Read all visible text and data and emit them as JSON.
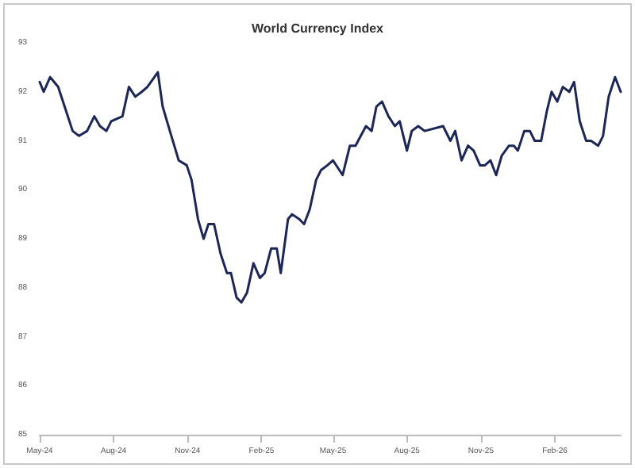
{
  "chart_data": {
    "type": "line",
    "title": "World Currency Index",
    "x": [
      "2024-05-01",
      "2024-05-06",
      "2024-05-14",
      "2024-05-24",
      "2024-06-01",
      "2024-06-11",
      "2024-06-19",
      "2024-06-29",
      "2024-07-08",
      "2024-07-15",
      "2024-07-23",
      "2024-07-29",
      "2024-08-12",
      "2024-08-20",
      "2024-08-28",
      "2024-09-05",
      "2024-09-12",
      "2024-09-25",
      "2024-10-01",
      "2024-10-10",
      "2024-10-21",
      "2024-10-31",
      "2024-11-06",
      "2024-11-14",
      "2024-11-21",
      "2024-11-27",
      "2024-12-04",
      "2024-12-12",
      "2024-12-20",
      "2024-12-25",
      "2025-01-01",
      "2025-01-07",
      "2025-01-14",
      "2025-01-22",
      "2025-01-30",
      "2025-02-05",
      "2025-02-13",
      "2025-02-20",
      "2025-02-25",
      "2025-03-06",
      "2025-03-11",
      "2025-03-20",
      "2025-03-26",
      "2025-04-02",
      "2025-04-10",
      "2025-04-16",
      "2025-04-24",
      "2025-05-01",
      "2025-05-13",
      "2025-05-22",
      "2025-05-29",
      "2025-06-11",
      "2025-06-18",
      "2025-06-24",
      "2025-07-01",
      "2025-07-09",
      "2025-07-17",
      "2025-07-23",
      "2025-08-01",
      "2025-08-07",
      "2025-08-15",
      "2025-08-23",
      "2025-09-15",
      "2025-09-24",
      "2025-09-30",
      "2025-10-08",
      "2025-10-16",
      "2025-10-23",
      "2025-10-31",
      "2025-11-06",
      "2025-11-13",
      "2025-11-20",
      "2025-11-27",
      "2025-12-06",
      "2025-12-12",
      "2025-12-17",
      "2025-12-25",
      "2026-01-01",
      "2026-01-07",
      "2026-01-15",
      "2026-01-22",
      "2026-01-28",
      "2026-02-04",
      "2026-02-11",
      "2026-02-19",
      "2026-02-25",
      "2026-03-04",
      "2026-03-12",
      "2026-03-18",
      "2026-03-27",
      "2026-04-02",
      "2026-04-09",
      "2026-04-17",
      "2026-04-24"
    ],
    "series": [
      {
        "color": "#1c2657",
        "values": [
          92.2,
          92.0,
          92.3,
          92.1,
          91.7,
          91.2,
          91.1,
          91.2,
          91.5,
          91.3,
          91.2,
          91.4,
          91.5,
          92.1,
          91.9,
          92.0,
          92.1,
          92.4,
          91.7,
          91.2,
          90.6,
          90.5,
          90.2,
          89.4,
          89.0,
          89.3,
          89.3,
          88.7,
          88.3,
          88.3,
          87.8,
          87.7,
          87.9,
          88.5,
          88.2,
          88.3,
          88.8,
          88.8,
          88.3,
          89.4,
          89.5,
          89.4,
          89.3,
          89.6,
          90.2,
          90.4,
          90.5,
          90.6,
          90.3,
          90.9,
          90.9,
          91.3,
          91.2,
          91.7,
          91.8,
          91.5,
          91.3,
          91.4,
          90.8,
          91.2,
          91.3,
          91.2,
          91.3,
          91.0,
          91.2,
          90.6,
          90.9,
          90.8,
          90.5,
          90.5,
          90.6,
          90.3,
          90.7,
          90.9,
          90.9,
          90.8,
          91.2,
          91.2,
          91.0,
          91.0,
          91.6,
          92.0,
          91.8,
          92.1,
          92.0,
          92.2,
          91.4,
          91.0,
          91.0,
          90.9,
          91.1,
          91.9,
          92.3,
          92.0
        ]
      }
    ],
    "xlim": [
      "2024-05-01",
      "2026-04-24"
    ],
    "xticks": [
      {
        "value": "2024-05-01",
        "label": "May-24"
      },
      {
        "value": "2024-08-01",
        "label": "Aug-24"
      },
      {
        "value": "2024-11-01",
        "label": "Nov-24"
      },
      {
        "value": "2025-02-01",
        "label": "Feb-25"
      },
      {
        "value": "2025-05-01",
        "label": "May-25"
      },
      {
        "value": "2025-08-01",
        "label": "Aug-25"
      },
      {
        "value": "2025-11-01",
        "label": "Nov-25"
      },
      {
        "value": "2026-02-01",
        "label": "Feb-26"
      }
    ],
    "ylim": [
      85,
      93
    ],
    "yticks": [
      85,
      86,
      87,
      88,
      89,
      90,
      91,
      92,
      93
    ],
    "grid": false,
    "marker": "none",
    "line_style": "solid"
  }
}
